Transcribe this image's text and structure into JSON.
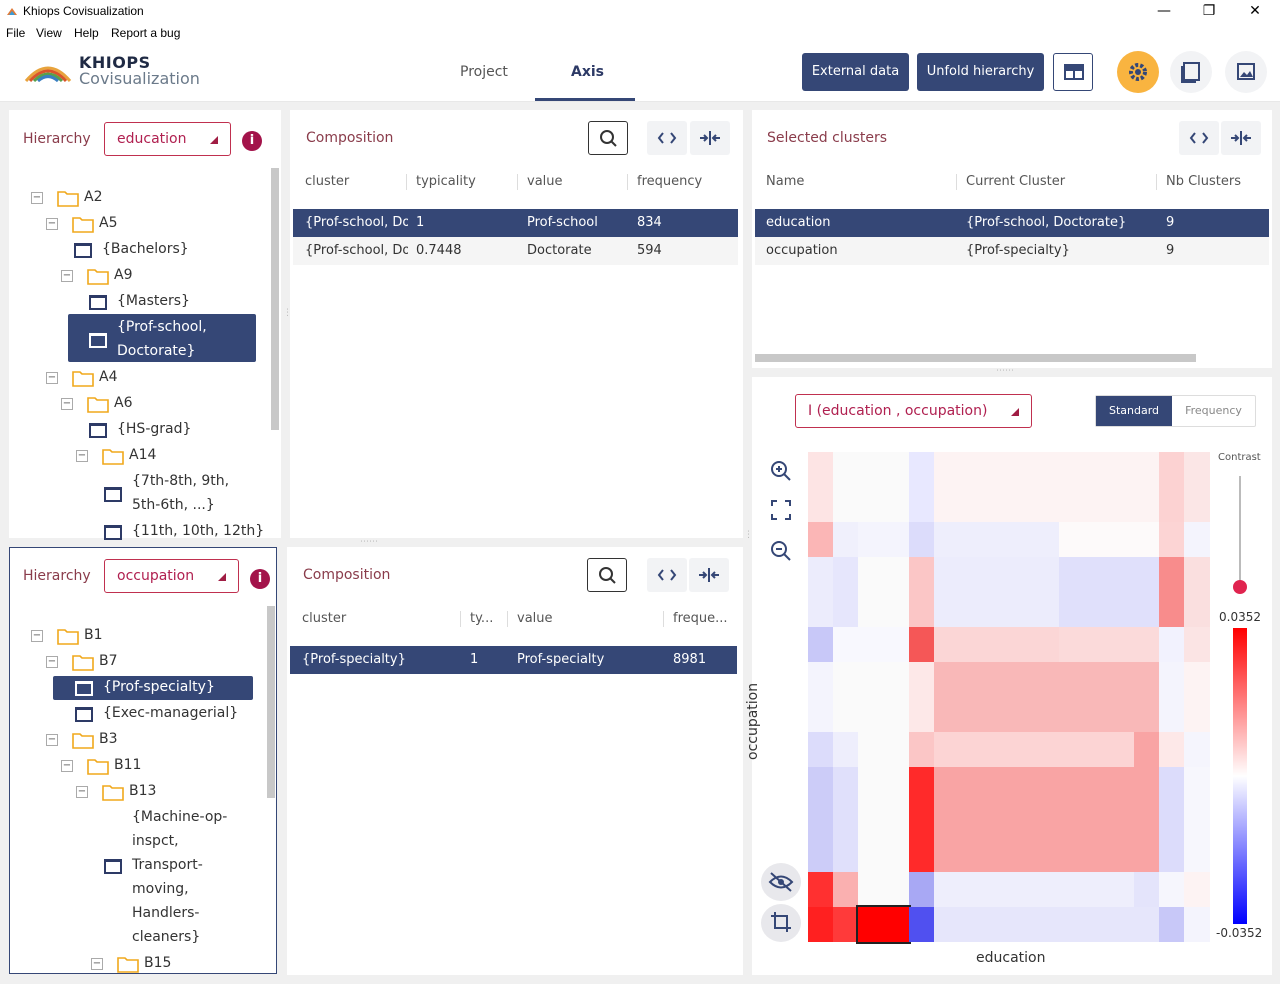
{
  "window": {
    "title": "Khiops Covisualization",
    "controls": [
      "—",
      "❐",
      "✕"
    ]
  },
  "menu": [
    "File",
    "View",
    "Help",
    "Report a bug"
  ],
  "header": {
    "logo_title": "KHIOPS",
    "logo_sub": "Covisualization",
    "tabs": [
      {
        "label": "Project",
        "active": false
      },
      {
        "label": "Axis",
        "active": true
      }
    ],
    "buttons": {
      "external": "External data",
      "unfold": "Unfold hierarchy"
    }
  },
  "hier1": {
    "label": "Hierarchy",
    "selected": "education",
    "info": "i",
    "nodes": [
      {
        "text": "A2",
        "type": "folder",
        "toggle": "−"
      },
      {
        "text": "A5",
        "type": "folder",
        "toggle": "−"
      },
      {
        "text": "{Bachelors}",
        "type": "leaf"
      },
      {
        "text": "A9",
        "type": "folder",
        "toggle": "−"
      },
      {
        "text": "{Masters}",
        "type": "leaf"
      },
      {
        "text": "{Prof-school,",
        "text2": "Doctorate}",
        "type": "leaf",
        "selected": true
      },
      {
        "text": "A4",
        "type": "folder",
        "toggle": "−"
      },
      {
        "text": "A6",
        "type": "folder",
        "toggle": "−"
      },
      {
        "text": "{HS-grad}",
        "type": "leaf"
      },
      {
        "text": "A14",
        "type": "folder",
        "toggle": "−"
      },
      {
        "text": "{7th-8th, 9th,",
        "text2": "5th-6th, ...}",
        "type": "leaf"
      },
      {
        "text": "{11th, 10th, 12th}",
        "type": "leaf"
      }
    ]
  },
  "hier2": {
    "label": "Hierarchy",
    "selected": "occupation",
    "info": "i",
    "nodes": [
      {
        "text": "B1",
        "type": "folder",
        "toggle": "−"
      },
      {
        "text": "B7",
        "type": "folder",
        "toggle": "−"
      },
      {
        "text": "{Prof-specialty}",
        "type": "leaf",
        "selected": true
      },
      {
        "text": "{Exec-managerial}",
        "type": "leaf"
      },
      {
        "text": "B3",
        "type": "folder",
        "toggle": "−"
      },
      {
        "text": "B11",
        "type": "folder",
        "toggle": "−"
      },
      {
        "text": "B13",
        "type": "folder",
        "toggle": "−"
      },
      {
        "lines": [
          "{Machine-op-",
          "inspct,",
          "Transport-",
          "moving,",
          "Handlers-",
          "cleaners}"
        ],
        "type": "leaf"
      },
      {
        "text": "B15",
        "type": "folder",
        "toggle": "−"
      }
    ]
  },
  "comp1": {
    "title": "Composition",
    "headers": [
      "cluster",
      "typicality",
      "value",
      "frequency"
    ],
    "rows": [
      {
        "cluster": "{Prof-school, Doctorate}",
        "typicality": "1",
        "value": "Prof-school",
        "frequency": "834"
      },
      {
        "cluster": "{Prof-school, Doctorate}",
        "typicality": "0.7448",
        "value": "Doctorate",
        "frequency": "594"
      }
    ]
  },
  "comp2": {
    "title": "Composition",
    "headers": [
      "cluster",
      "ty...",
      "value",
      "freque..."
    ],
    "rows": [
      {
        "cluster": "{Prof-specialty}",
        "typicality": "1",
        "value": "Prof-specialty",
        "frequency": "8981"
      }
    ]
  },
  "selected_clusters": {
    "title": "Selected clusters",
    "headers": [
      "Name",
      "Current Cluster",
      "Nb Clusters"
    ],
    "rows": [
      {
        "name": "education",
        "cluster": "{Prof-school, Doctorate}",
        "nb": "9"
      },
      {
        "name": "occupation",
        "cluster": "{Prof-specialty}",
        "nb": "9"
      }
    ]
  },
  "matrix_panel": {
    "select": "I (education , occupation)",
    "toggle": {
      "standard": "Standard",
      "frequency": "Frequency",
      "active": "standard"
    },
    "contrast_label": "Contrast",
    "legend_max": "0.0352",
    "legend_min": "-0.0352",
    "x_label": "education",
    "y_label": "occupation",
    "colors": {
      "positive": "#ff0000",
      "negative": "#0000ff",
      "neutral": "#ffffff",
      "accent": "#354776"
    }
  }
}
